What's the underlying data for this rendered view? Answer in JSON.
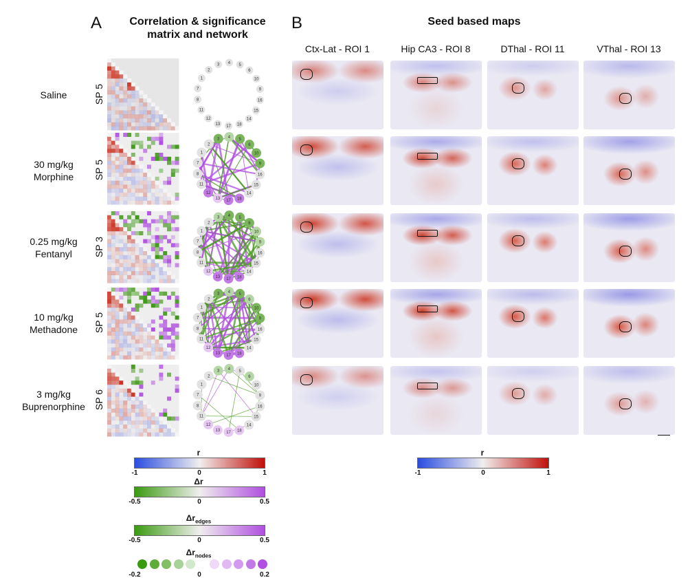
{
  "panel_a": {
    "letter": "A",
    "title_line1": "Correlation & significance",
    "title_line2": "matrix and network"
  },
  "panel_b": {
    "letter": "B",
    "title": "Seed based maps"
  },
  "columns": [
    "Ctx-Lat - ROI 1",
    "Hip CA3 - ROI 8",
    "DThal - ROI 11",
    "VThal - ROI 13"
  ],
  "rows": [
    {
      "line1": "Saline",
      "line2": "",
      "sp": "SP 5"
    },
    {
      "line1": "30 mg/kg",
      "line2": "Morphine",
      "sp": "SP 5"
    },
    {
      "line1": "0.25 mg/kg",
      "line2": "Fentanyl",
      "sp": "SP 3"
    },
    {
      "line1": "10 mg/kg",
      "line2": "Methadone",
      "sp": "SP 5"
    },
    {
      "line1": "3 mg/kg",
      "line2": "Buprenorphine",
      "sp": "SP 6"
    }
  ],
  "network_nodes": [
    "3",
    "4",
    "5",
    "6",
    "10",
    "9",
    "16",
    "15",
    "14",
    "18",
    "17",
    "13",
    "12",
    "11",
    "8",
    "7",
    "1",
    "2"
  ],
  "legends": {
    "r": {
      "label": "r",
      "min": "-1",
      "mid": "0",
      "max": "1",
      "colors": [
        "#2b4de0",
        "#f0eeee",
        "#c0100a"
      ]
    },
    "dr": {
      "label": "Δr",
      "min": "-0.5",
      "mid": "0",
      "max": "0.5",
      "colors": [
        "#3a9a10",
        "#f0eeee",
        "#b04fe0"
      ]
    },
    "dr_edges": {
      "label": "Δr",
      "sub": "edges",
      "min": "-0.5",
      "mid": "0",
      "max": "0.5"
    },
    "dr_nodes": {
      "label": "Δr",
      "sub": "nodes",
      "min": "-0.2",
      "mid": "0",
      "max": "0.2"
    },
    "r_maps": {
      "label": "r",
      "min": "-1",
      "mid": "0",
      "max": "1"
    }
  }
}
